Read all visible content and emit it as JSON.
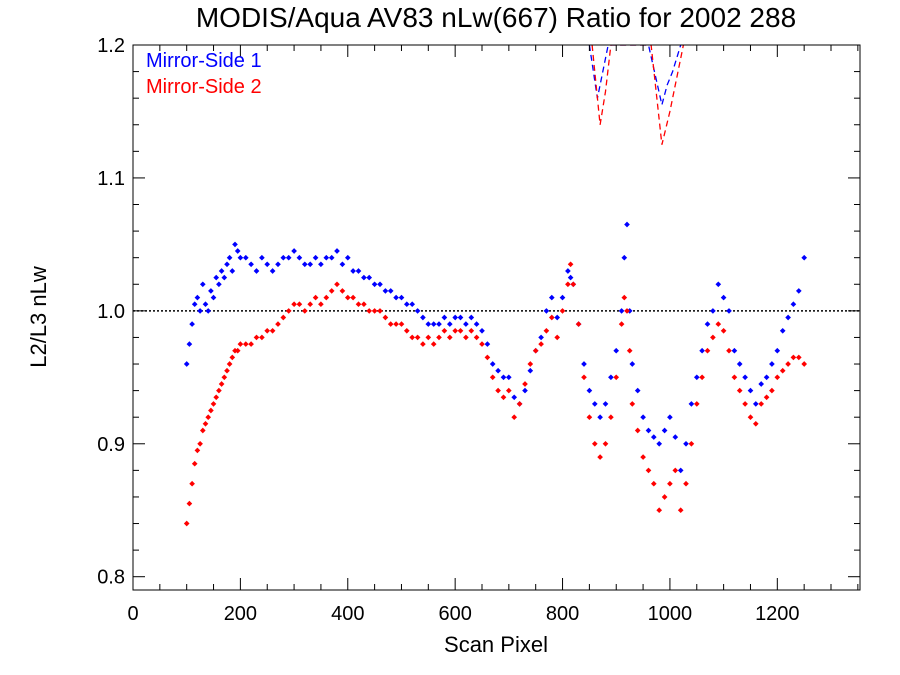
{
  "chart_data": {
    "type": "scatter",
    "title": "MODIS/Aqua AV83 nLw(667) Ratio for 2002 288",
    "xlabel": "Scan Pixel",
    "ylabel": "L2/L3 nLw",
    "xlim": [
      0,
      1354
    ],
    "ylim": [
      0.79,
      1.2
    ],
    "xticks": [
      0,
      200,
      400,
      600,
      800,
      1000,
      1200
    ],
    "yticks": [
      0.8,
      0.9,
      1.0,
      1.1,
      1.2
    ],
    "xtick_labels": [
      "0",
      "200",
      "400",
      "600",
      "800",
      "1000",
      "1200"
    ],
    "ytick_labels": [
      "0.8",
      "0.9",
      "1.0",
      "1.1",
      "1.2"
    ],
    "reference_line": {
      "y": 1.0,
      "style": "dotted",
      "color": "#000000"
    },
    "legend_placement": "top-left",
    "series": [
      {
        "name": "Mirror-Side 1",
        "color": "#0000ff",
        "points": [
          [
            100,
            0.96
          ],
          [
            105,
            0.975
          ],
          [
            110,
            0.99
          ],
          [
            115,
            1.005
          ],
          [
            120,
            1.01
          ],
          [
            125,
            1.0
          ],
          [
            130,
            1.02
          ],
          [
            135,
            1.005
          ],
          [
            140,
            1.0
          ],
          [
            145,
            1.015
          ],
          [
            150,
            1.01
          ],
          [
            155,
            1.025
          ],
          [
            160,
            1.02
          ],
          [
            165,
            1.03
          ],
          [
            170,
            1.025
          ],
          [
            175,
            1.035
          ],
          [
            180,
            1.04
          ],
          [
            185,
            1.03
          ],
          [
            190,
            1.05
          ],
          [
            195,
            1.045
          ],
          [
            200,
            1.04
          ],
          [
            210,
            1.04
          ],
          [
            220,
            1.035
          ],
          [
            230,
            1.03
          ],
          [
            240,
            1.04
          ],
          [
            250,
            1.035
          ],
          [
            260,
            1.03
          ],
          [
            270,
            1.035
          ],
          [
            280,
            1.04
          ],
          [
            290,
            1.04
          ],
          [
            300,
            1.045
          ],
          [
            310,
            1.04
          ],
          [
            320,
            1.035
          ],
          [
            330,
            1.035
          ],
          [
            340,
            1.04
          ],
          [
            350,
            1.035
          ],
          [
            360,
            1.04
          ],
          [
            370,
            1.04
          ],
          [
            380,
            1.045
          ],
          [
            390,
            1.035
          ],
          [
            400,
            1.04
          ],
          [
            410,
            1.03
          ],
          [
            420,
            1.03
          ],
          [
            430,
            1.025
          ],
          [
            440,
            1.025
          ],
          [
            450,
            1.02
          ],
          [
            460,
            1.02
          ],
          [
            470,
            1.015
          ],
          [
            480,
            1.015
          ],
          [
            490,
            1.01
          ],
          [
            500,
            1.01
          ],
          [
            510,
            1.005
          ],
          [
            520,
            1.005
          ],
          [
            530,
            1.0
          ],
          [
            540,
            0.995
          ],
          [
            550,
            0.99
          ],
          [
            560,
            0.99
          ],
          [
            570,
            0.99
          ],
          [
            580,
            0.995
          ],
          [
            590,
            0.99
          ],
          [
            600,
            0.995
          ],
          [
            610,
            0.995
          ],
          [
            620,
            0.99
          ],
          [
            630,
            0.995
          ],
          [
            640,
            0.99
          ],
          [
            650,
            0.985
          ],
          [
            660,
            0.975
          ],
          [
            670,
            0.96
          ],
          [
            680,
            0.955
          ],
          [
            690,
            0.95
          ],
          [
            700,
            0.95
          ],
          [
            710,
            0.935
          ],
          [
            720,
            0.93
          ],
          [
            730,
            0.94
          ],
          [
            740,
            0.955
          ],
          [
            750,
            0.97
          ],
          [
            760,
            0.98
          ],
          [
            770,
            1.0
          ],
          [
            780,
            1.01
          ],
          [
            790,
            0.995
          ],
          [
            800,
            1.01
          ],
          [
            810,
            1.03
          ],
          [
            815,
            1.025
          ],
          [
            820,
            1.02
          ],
          [
            830,
            0.99
          ],
          [
            840,
            0.96
          ],
          [
            850,
            0.94
          ],
          [
            860,
            0.93
          ],
          [
            870,
            0.92
          ],
          [
            880,
            0.93
          ],
          [
            890,
            0.95
          ],
          [
            900,
            0.97
          ],
          [
            910,
            1.0
          ],
          [
            915,
            1.04
          ],
          [
            920,
            1.065
          ],
          [
            925,
            1.0
          ],
          [
            930,
            0.96
          ],
          [
            940,
            0.94
          ],
          [
            950,
            0.92
          ],
          [
            960,
            0.91
          ],
          [
            970,
            0.905
          ],
          [
            980,
            0.9
          ],
          [
            990,
            0.91
          ],
          [
            1000,
            0.92
          ],
          [
            1010,
            0.905
          ],
          [
            1020,
            0.88
          ],
          [
            1030,
            0.9
          ],
          [
            1040,
            0.93
          ],
          [
            1050,
            0.95
          ],
          [
            1060,
            0.97
          ],
          [
            1070,
            0.99
          ],
          [
            1080,
            1.0
          ],
          [
            1090,
            1.02
          ],
          [
            1100,
            1.01
          ],
          [
            1110,
            1.0
          ],
          [
            1120,
            0.97
          ],
          [
            1130,
            0.96
          ],
          [
            1140,
            0.95
          ],
          [
            1150,
            0.94
          ],
          [
            1160,
            0.93
          ],
          [
            1170,
            0.945
          ],
          [
            1180,
            0.95
          ],
          [
            1190,
            0.96
          ],
          [
            1200,
            0.97
          ],
          [
            1210,
            0.985
          ],
          [
            1220,
            0.995
          ],
          [
            1230,
            1.005
          ],
          [
            1240,
            1.015
          ],
          [
            1250,
            1.04
          ]
        ]
      },
      {
        "name": "Mirror-Side 2",
        "color": "#ff0000",
        "points": [
          [
            100,
            0.84
          ],
          [
            105,
            0.855
          ],
          [
            110,
            0.87
          ],
          [
            115,
            0.885
          ],
          [
            120,
            0.895
          ],
          [
            125,
            0.9
          ],
          [
            130,
            0.91
          ],
          [
            135,
            0.915
          ],
          [
            140,
            0.92
          ],
          [
            145,
            0.925
          ],
          [
            150,
            0.93
          ],
          [
            155,
            0.935
          ],
          [
            160,
            0.94
          ],
          [
            165,
            0.945
          ],
          [
            170,
            0.95
          ],
          [
            175,
            0.955
          ],
          [
            180,
            0.96
          ],
          [
            185,
            0.965
          ],
          [
            190,
            0.97
          ],
          [
            195,
            0.97
          ],
          [
            200,
            0.975
          ],
          [
            210,
            0.975
          ],
          [
            220,
            0.975
          ],
          [
            230,
            0.98
          ],
          [
            240,
            0.98
          ],
          [
            250,
            0.985
          ],
          [
            260,
            0.985
          ],
          [
            270,
            0.99
          ],
          [
            280,
            0.995
          ],
          [
            290,
            1.0
          ],
          [
            300,
            1.005
          ],
          [
            310,
            1.005
          ],
          [
            320,
            1.0
          ],
          [
            330,
            1.005
          ],
          [
            340,
            1.01
          ],
          [
            350,
            1.005
          ],
          [
            360,
            1.01
          ],
          [
            370,
            1.015
          ],
          [
            380,
            1.02
          ],
          [
            390,
            1.015
          ],
          [
            400,
            1.01
          ],
          [
            410,
            1.01
          ],
          [
            420,
            1.005
          ],
          [
            430,
            1.005
          ],
          [
            440,
            1.0
          ],
          [
            450,
            1.0
          ],
          [
            460,
            1.0
          ],
          [
            470,
            0.995
          ],
          [
            480,
            0.99
          ],
          [
            490,
            0.99
          ],
          [
            500,
            0.99
          ],
          [
            510,
            0.985
          ],
          [
            520,
            0.98
          ],
          [
            530,
            0.98
          ],
          [
            540,
            0.975
          ],
          [
            550,
            0.98
          ],
          [
            560,
            0.975
          ],
          [
            570,
            0.98
          ],
          [
            580,
            0.985
          ],
          [
            590,
            0.98
          ],
          [
            600,
            0.985
          ],
          [
            610,
            0.985
          ],
          [
            620,
            0.98
          ],
          [
            630,
            0.985
          ],
          [
            640,
            0.98
          ],
          [
            650,
            0.975
          ],
          [
            660,
            0.965
          ],
          [
            670,
            0.95
          ],
          [
            680,
            0.94
          ],
          [
            690,
            0.935
          ],
          [
            700,
            0.94
          ],
          [
            710,
            0.92
          ],
          [
            720,
            0.93
          ],
          [
            730,
            0.945
          ],
          [
            740,
            0.96
          ],
          [
            750,
            0.97
          ],
          [
            760,
            0.975
          ],
          [
            770,
            0.985
          ],
          [
            780,
            0.995
          ],
          [
            790,
            0.98
          ],
          [
            800,
            1.0
          ],
          [
            810,
            1.02
          ],
          [
            815,
            1.035
          ],
          [
            820,
            1.02
          ],
          [
            830,
            0.99
          ],
          [
            840,
            0.95
          ],
          [
            850,
            0.92
          ],
          [
            860,
            0.9
          ],
          [
            870,
            0.89
          ],
          [
            880,
            0.9
          ],
          [
            890,
            0.92
          ],
          [
            900,
            0.95
          ],
          [
            910,
            0.99
          ],
          [
            915,
            1.01
          ],
          [
            920,
            1.0
          ],
          [
            925,
            0.97
          ],
          [
            930,
            0.93
          ],
          [
            940,
            0.91
          ],
          [
            950,
            0.89
          ],
          [
            960,
            0.88
          ],
          [
            970,
            0.87
          ],
          [
            980,
            0.85
          ],
          [
            990,
            0.86
          ],
          [
            1000,
            0.87
          ],
          [
            1010,
            0.88
          ],
          [
            1020,
            0.85
          ],
          [
            1030,
            0.87
          ],
          [
            1040,
            0.9
          ],
          [
            1050,
            0.93
          ],
          [
            1060,
            0.95
          ],
          [
            1070,
            0.97
          ],
          [
            1080,
            0.98
          ],
          [
            1090,
            0.99
          ],
          [
            1100,
            0.985
          ],
          [
            1110,
            0.97
          ],
          [
            1120,
            0.95
          ],
          [
            1130,
            0.94
          ],
          [
            1140,
            0.93
          ],
          [
            1150,
            0.92
          ],
          [
            1160,
            0.915
          ],
          [
            1170,
            0.93
          ],
          [
            1180,
            0.935
          ],
          [
            1190,
            0.94
          ],
          [
            1200,
            0.95
          ],
          [
            1210,
            0.955
          ],
          [
            1220,
            0.96
          ],
          [
            1230,
            0.965
          ],
          [
            1240,
            0.965
          ],
          [
            1250,
            0.96
          ]
        ]
      }
    ],
    "offscale_lines": [
      {
        "series": "Mirror-Side 1",
        "color": "#0000ff",
        "style": "dashed",
        "points": [
          [
            850,
            1.2
          ],
          [
            865,
            1.16
          ],
          [
            875,
            1.18
          ],
          [
            885,
            1.2
          ],
          [
            960,
            1.2
          ],
          [
            985,
            1.155
          ],
          [
            995,
            1.17
          ],
          [
            1005,
            1.18
          ],
          [
            1020,
            1.2
          ]
        ]
      },
      {
        "series": "Mirror-Side 2",
        "color": "#ff0000",
        "style": "dashed",
        "points": [
          [
            855,
            1.2
          ],
          [
            870,
            1.14
          ],
          [
            880,
            1.165
          ],
          [
            890,
            1.2
          ],
          [
            965,
            1.2
          ],
          [
            985,
            1.125
          ],
          [
            1000,
            1.15
          ],
          [
            1010,
            1.17
          ],
          [
            1025,
            1.2
          ]
        ]
      }
    ]
  }
}
